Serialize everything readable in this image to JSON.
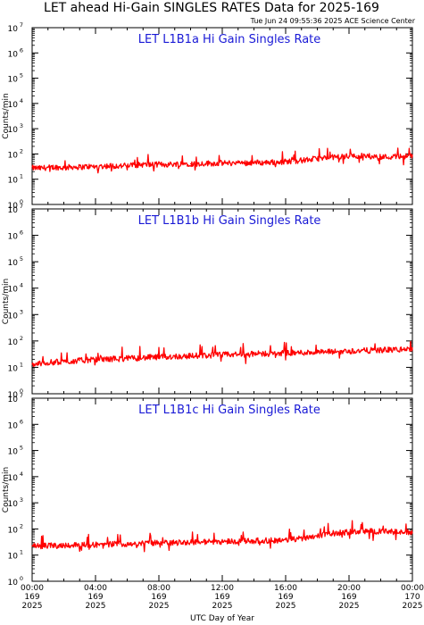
{
  "figure": {
    "title": "LET ahead Hi-Gain SINGLES RATES Data for 2025-169",
    "timestamp": "Tue Jun 24 09:55:36 2025 ACE Science Center",
    "xlabel": "UTC Day of Year",
    "colors": {
      "series": "#ff0000",
      "panel_title": "#1a1ad6",
      "axes": "#000000"
    }
  },
  "chart_data": [
    {
      "type": "line",
      "title": "LET L1B1a Hi Gain Singles Rate",
      "ylabel": "Counts/min",
      "yscale": "log",
      "ylim": [
        1,
        10000000
      ],
      "xlim": [
        0,
        24
      ],
      "y_ticks": [
        {
          "base": "10",
          "exp": "0"
        },
        {
          "base": "10",
          "exp": "1"
        },
        {
          "base": "10",
          "exp": "2"
        },
        {
          "base": "10",
          "exp": "3"
        },
        {
          "base": "10",
          "exp": "4"
        },
        {
          "base": "10",
          "exp": "5"
        },
        {
          "base": "10",
          "exp": "6"
        },
        {
          "base": "10",
          "exp": "7"
        }
      ],
      "series": [
        {
          "x": [
            0,
            0.5,
            1,
            1.5,
            2,
            2.5,
            3,
            3.5,
            4,
            4.5,
            5,
            5.5,
            6,
            6.5,
            7,
            7.5,
            8,
            8.5,
            9,
            9.5,
            10,
            10.5,
            11,
            11.5,
            12,
            12.5,
            13,
            13.5,
            14,
            14.5,
            15,
            15.5,
            16,
            16.5,
            17,
            17.5,
            18,
            18.5,
            19,
            19.5,
            20,
            20.5,
            21,
            21.5,
            22,
            22.5,
            23,
            23.5,
            24
          ],
          "y": [
            28,
            27,
            29,
            30,
            28,
            31,
            30,
            32,
            31,
            33,
            34,
            33,
            35,
            36,
            38,
            37,
            39,
            38,
            40,
            42,
            41,
            40,
            43,
            42,
            44,
            43,
            45,
            44,
            46,
            45,
            47,
            48,
            50,
            52,
            55,
            60,
            65,
            70,
            74,
            78,
            82,
            85,
            84,
            80,
            78,
            76,
            80,
            82,
            80
          ]
        }
      ]
    },
    {
      "type": "line",
      "title": "LET L1B1b Hi Gain Singles Rate",
      "ylabel": "Counts/min",
      "yscale": "log",
      "ylim": [
        1,
        10000000
      ],
      "xlim": [
        0,
        24
      ],
      "y_ticks": [
        {
          "base": "10",
          "exp": "0"
        },
        {
          "base": "10",
          "exp": "1"
        },
        {
          "base": "10",
          "exp": "2"
        },
        {
          "base": "10",
          "exp": "3"
        },
        {
          "base": "10",
          "exp": "4"
        },
        {
          "base": "10",
          "exp": "5"
        },
        {
          "base": "10",
          "exp": "6"
        },
        {
          "base": "10",
          "exp": "7"
        }
      ],
      "series": [
        {
          "x": [
            0,
            0.5,
            1,
            1.5,
            2,
            2.5,
            3,
            3.5,
            4,
            4.5,
            5,
            5.5,
            6,
            6.5,
            7,
            7.5,
            8,
            8.5,
            9,
            9.5,
            10,
            10.5,
            11,
            11.5,
            12,
            12.5,
            13,
            13.5,
            14,
            14.5,
            15,
            15.5,
            16,
            16.5,
            17,
            17.5,
            18,
            18.5,
            19,
            19.5,
            20,
            20.5,
            21,
            21.5,
            22,
            22.5,
            23,
            23.5,
            24
          ],
          "y": [
            13,
            14,
            15,
            16,
            16,
            17,
            18,
            19,
            19,
            20,
            21,
            21,
            22,
            22,
            23,
            24,
            24,
            25,
            26,
            26,
            27,
            28,
            28,
            29,
            30,
            30,
            31,
            31,
            32,
            33,
            33,
            34,
            35,
            35,
            36,
            37,
            37,
            38,
            39,
            40,
            41,
            42,
            43,
            44,
            45,
            46,
            47,
            48,
            48
          ]
        }
      ]
    },
    {
      "type": "line",
      "title": "LET L1B1c Hi Gain Singles Rate",
      "ylabel": "Counts/min",
      "yscale": "log",
      "ylim": [
        1,
        10000000
      ],
      "xlim": [
        0,
        24
      ],
      "y_ticks": [
        {
          "base": "10",
          "exp": "0"
        },
        {
          "base": "10",
          "exp": "1"
        },
        {
          "base": "10",
          "exp": "2"
        },
        {
          "base": "10",
          "exp": "3"
        },
        {
          "base": "10",
          "exp": "4"
        },
        {
          "base": "10",
          "exp": "5"
        },
        {
          "base": "10",
          "exp": "6"
        },
        {
          "base": "10",
          "exp": "7"
        }
      ],
      "x_ticks": [
        {
          "time": "00:00",
          "day": "169",
          "year": "2025"
        },
        {
          "time": "04:00",
          "day": "169",
          "year": "2025"
        },
        {
          "time": "08:00",
          "day": "169",
          "year": "2025"
        },
        {
          "time": "12:00",
          "day": "169",
          "year": "2025"
        },
        {
          "time": "16:00",
          "day": "169",
          "year": "2025"
        },
        {
          "time": "20:00",
          "day": "169",
          "year": "2025"
        },
        {
          "time": "00:00",
          "day": "170",
          "year": "2025"
        }
      ],
      "series": [
        {
          "x": [
            0,
            0.5,
            1,
            1.5,
            2,
            2.5,
            3,
            3.5,
            4,
            4.5,
            5,
            5.5,
            6,
            6.5,
            7,
            7.5,
            8,
            8.5,
            9,
            9.5,
            10,
            10.5,
            11,
            11.5,
            12,
            12.5,
            13,
            13.5,
            14,
            14.5,
            15,
            15.5,
            16,
            16.5,
            17,
            17.5,
            18,
            18.5,
            19,
            19.5,
            20,
            20.5,
            21,
            21.5,
            22,
            22.5,
            23,
            23.5,
            24
          ],
          "y": [
            22,
            22,
            23,
            23,
            24,
            24,
            25,
            25,
            25,
            26,
            26,
            27,
            27,
            28,
            28,
            29,
            29,
            30,
            30,
            31,
            31,
            32,
            32,
            33,
            33,
            34,
            34,
            35,
            35,
            36,
            36,
            37,
            38,
            40,
            44,
            50,
            56,
            62,
            68,
            72,
            76,
            80,
            82,
            82,
            80,
            78,
            76,
            74,
            72
          ]
        }
      ]
    }
  ]
}
